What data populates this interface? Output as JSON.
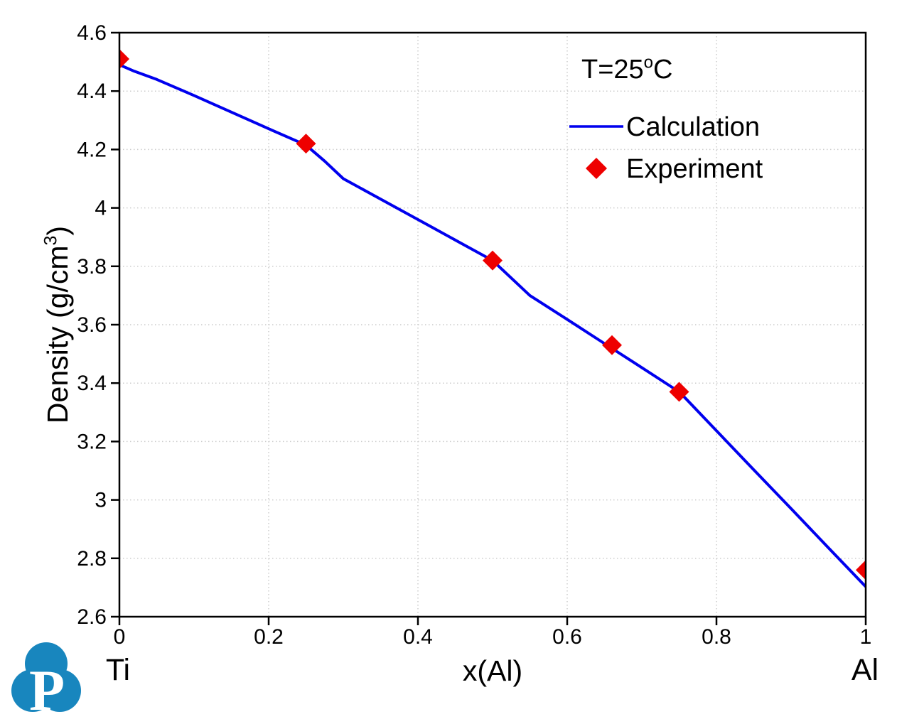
{
  "chart_data": {
    "type": "line",
    "title": "",
    "annotation": {
      "pre": "T=25",
      "sup": "o",
      "post": "C"
    },
    "xlabel": "x(Al)",
    "ylabel": {
      "pre": "Density (g/cm",
      "sup": "3",
      "post": ")"
    },
    "x_end_labels": {
      "left": "Ti",
      "right": "Al"
    },
    "xlim": [
      0,
      1
    ],
    "ylim": [
      2.6,
      4.6
    ],
    "grid": true,
    "legend_position": "top-right-inside",
    "x_ticks": [
      {
        "v": 0,
        "label": "0"
      },
      {
        "v": 0.2,
        "label": "0.2"
      },
      {
        "v": 0.4,
        "label": "0.4"
      },
      {
        "v": 0.6,
        "label": "0.6"
      },
      {
        "v": 0.8,
        "label": "0.8"
      },
      {
        "v": 1,
        "label": "1"
      }
    ],
    "y_ticks": [
      {
        "v": 2.6,
        "label": "2.6"
      },
      {
        "v": 2.8,
        "label": "2.8"
      },
      {
        "v": 3,
        "label": "3"
      },
      {
        "v": 3.2,
        "label": "3.2"
      },
      {
        "v": 3.4,
        "label": "3.4"
      },
      {
        "v": 3.6,
        "label": "3.6"
      },
      {
        "v": 3.8,
        "label": "3.8"
      },
      {
        "v": 4,
        "label": "4"
      },
      {
        "v": 4.2,
        "label": "4.2"
      },
      {
        "v": 4.4,
        "label": "4.4"
      },
      {
        "v": 4.6,
        "label": "4.6"
      }
    ],
    "series": [
      {
        "name": "Calculation",
        "type": "line",
        "color": "#0000ee",
        "points": [
          [
            0,
            4.49
          ],
          [
            0.02,
            4.468
          ],
          [
            0.05,
            4.44
          ],
          [
            0.1,
            4.385
          ],
          [
            0.15,
            4.328
          ],
          [
            0.2,
            4.271
          ],
          [
            0.25,
            4.215
          ],
          [
            0.275,
            4.16
          ],
          [
            0.3,
            4.1
          ],
          [
            0.34,
            4.044
          ],
          [
            0.38,
            3.988
          ],
          [
            0.42,
            3.932
          ],
          [
            0.46,
            3.876
          ],
          [
            0.5,
            3.82
          ],
          [
            0.53,
            3.748
          ],
          [
            0.55,
            3.7
          ],
          [
            0.6,
            3.618
          ],
          [
            0.655,
            3.527
          ],
          [
            0.7,
            3.453
          ],
          [
            0.75,
            3.37
          ],
          [
            0.76,
            3.344
          ],
          [
            0.8,
            3.237
          ],
          [
            0.85,
            3.103
          ],
          [
            0.9,
            2.97
          ],
          [
            0.95,
            2.836
          ],
          [
            1,
            2.703
          ]
        ]
      },
      {
        "name": "Experiment",
        "type": "scatter",
        "marker": "diamond",
        "color": "#ee0000",
        "points": [
          [
            0,
            4.51
          ],
          [
            0.25,
            4.22
          ],
          [
            0.5,
            3.82
          ],
          [
            0.66,
            3.53
          ],
          [
            0.75,
            3.37
          ],
          [
            1,
            2.76
          ]
        ]
      }
    ]
  },
  "logo": {
    "letter": "P",
    "color": "#1886be"
  }
}
